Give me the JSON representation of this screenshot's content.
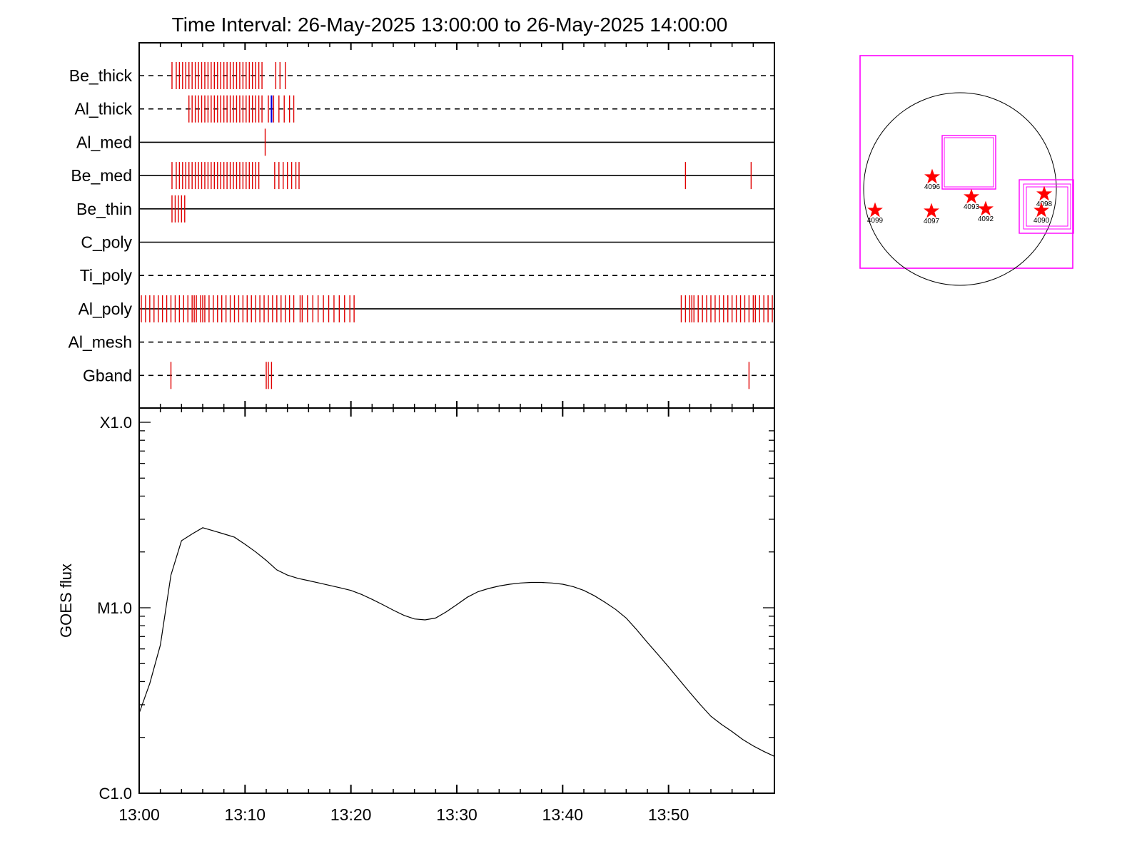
{
  "title": "Time Interval: 26-May-2025 13:00:00 to 26-May-2025 14:00:00",
  "chart_data": [
    {
      "type": "scatter",
      "description": "Filter timeline (event ticks per filter channel)",
      "x_range_minutes": [
        0,
        60
      ],
      "rows": [
        {
          "label": "Be_thick",
          "style": "dashed"
        },
        {
          "label": "Al_thick",
          "style": "dashed"
        },
        {
          "label": "Al_med",
          "style": "solid"
        },
        {
          "label": "Be_med",
          "style": "solid"
        },
        {
          "label": "Be_thin",
          "style": "solid"
        },
        {
          "label": "C_poly",
          "style": "solid"
        },
        {
          "label": "Ti_poly",
          "style": "dashed"
        },
        {
          "label": "Al_poly",
          "style": "solid"
        },
        {
          "label": "Al_mesh",
          "style": "dashed"
        },
        {
          "label": "Gband",
          "style": "dashed"
        }
      ],
      "ticks": {
        "Be_thick": [
          3.1,
          3.5,
          3.8,
          4.1,
          4.4,
          4.7,
          5.0,
          5.3,
          5.6,
          5.9,
          6.2,
          6.5,
          6.8,
          7.1,
          7.4,
          7.7,
          8.0,
          8.3,
          8.6,
          8.9,
          9.2,
          9.5,
          9.8,
          10.1,
          10.4,
          10.7,
          11.0,
          11.3,
          11.6,
          12.9,
          13.3,
          13.8
        ],
        "Al_thick": [
          4.7,
          5.0,
          5.3,
          5.6,
          5.9,
          6.2,
          6.5,
          6.8,
          7.1,
          7.4,
          7.7,
          8.0,
          8.3,
          8.6,
          8.9,
          9.2,
          9.5,
          9.8,
          10.1,
          10.4,
          10.7,
          11.0,
          11.3,
          11.6,
          12.2,
          12.7,
          13.2,
          13.7,
          14.2,
          14.6
        ],
        "Al_thick_blue": [
          12.5
        ],
        "Al_med": [
          11.9
        ],
        "Be_med": [
          3.1,
          3.5,
          3.8,
          4.1,
          4.4,
          4.7,
          5.0,
          5.3,
          5.6,
          5.9,
          6.2,
          6.5,
          6.8,
          7.1,
          7.4,
          7.7,
          8.0,
          8.3,
          8.6,
          8.9,
          9.2,
          9.5,
          9.8,
          10.1,
          10.4,
          10.7,
          11.0,
          11.3,
          12.8,
          13.2,
          13.6,
          14.0,
          14.4,
          14.8,
          15.1,
          51.6,
          57.8
        ],
        "Be_thin": [
          3.1,
          3.4,
          3.7,
          4.0,
          4.3
        ],
        "C_poly": [],
        "Ti_poly": [],
        "Al_poly": [
          0.2,
          0.6,
          1.0,
          1.4,
          1.8,
          2.2,
          2.6,
          3.0,
          3.4,
          3.8,
          4.2,
          4.6,
          5.0,
          5.2,
          5.4,
          5.8,
          6.0,
          6.2,
          6.6,
          7.0,
          7.4,
          7.8,
          8.2,
          8.6,
          9.0,
          9.4,
          9.8,
          10.2,
          10.6,
          11.0,
          11.4,
          11.8,
          12.2,
          12.6,
          13.0,
          13.4,
          13.8,
          14.2,
          14.6,
          15.2,
          15.4,
          15.9,
          16.4,
          16.9,
          17.4,
          17.9,
          18.4,
          18.9,
          19.4,
          19.9,
          20.3,
          51.2,
          51.6,
          52.0,
          52.2,
          52.4,
          52.8,
          53.2,
          53.6,
          54.0,
          54.4,
          54.8,
          55.2,
          55.6,
          56.0,
          56.4,
          56.8,
          57.2,
          57.6,
          58.0,
          58.2,
          58.6,
          59.0,
          59.4,
          59.8
        ],
        "Al_mesh": [],
        "Gband": [
          3.0,
          12.0,
          12.2,
          12.5,
          57.6
        ]
      }
    },
    {
      "type": "line",
      "description": "GOES flux light curve",
      "xlabel": "",
      "ylabel": "GOES flux",
      "y_scale": "log",
      "ylim": [
        1e-06,
        0.0001
      ],
      "yticklabels": [
        "C1.0",
        "M1.0",
        "X1.0"
      ],
      "xticklabels": [
        "13:00",
        "13:10",
        "13:20",
        "13:30",
        "13:40",
        "13:50"
      ],
      "xlim": [
        0,
        60
      ],
      "series": [
        {
          "x": [
            0,
            1,
            2,
            3,
            4,
            5,
            6,
            7,
            8,
            9,
            10,
            11,
            12,
            13,
            14,
            15,
            16,
            17,
            18,
            19,
            20,
            21,
            22,
            23,
            24,
            25,
            26,
            27,
            28,
            29,
            30,
            31,
            32,
            33,
            34,
            35,
            36,
            37,
            38,
            39,
            40,
            41,
            42,
            43,
            44,
            45,
            46,
            47,
            48,
            49,
            50,
            51,
            52,
            53,
            54,
            55,
            56,
            57,
            58,
            59,
            60
          ],
          "y": [
            2.7e-06,
            3.9e-06,
            6.3e-06,
            1.5e-05,
            2.3e-05,
            2.5e-05,
            2.7e-05,
            2.6e-05,
            2.5e-05,
            2.4e-05,
            2.2e-05,
            2e-05,
            1.8e-05,
            1.6e-05,
            1.5e-05,
            1.44e-05,
            1.4e-05,
            1.36e-05,
            1.32e-05,
            1.28e-05,
            1.24e-05,
            1.18e-05,
            1.11e-05,
            1.04e-05,
            9.7e-06,
            9.1e-06,
            8.7e-06,
            8.6e-06,
            8.8e-06,
            9.5e-06,
            1.04e-05,
            1.14e-05,
            1.22e-05,
            1.27e-05,
            1.31e-05,
            1.34e-05,
            1.36e-05,
            1.37e-05,
            1.37e-05,
            1.36e-05,
            1.34e-05,
            1.3e-05,
            1.24e-05,
            1.16e-05,
            1.07e-05,
            9.8e-06,
            8.8e-06,
            7.6e-06,
            6.5e-06,
            5.6e-06,
            4.8e-06,
            4.1e-06,
            3.5e-06,
            3e-06,
            2.6e-06,
            2.35e-06,
            2.15e-06,
            1.95e-06,
            1.8e-06,
            1.68e-06,
            1.58e-06
          ]
        }
      ]
    },
    {
      "type": "scatter",
      "description": "Solar disk map with active regions",
      "points": [
        {
          "label": "4099"
        },
        {
          "label": "4096"
        },
        {
          "label": "4097"
        },
        {
          "label": "4093"
        },
        {
          "label": "4092"
        },
        {
          "label": "4098"
        },
        {
          "label": "4090"
        }
      ]
    }
  ],
  "colors": {
    "tick": "#e00000",
    "tick_blue": "#0000e0",
    "box": "#ff00ff",
    "star": "#ff0000",
    "axis": "#000000"
  }
}
